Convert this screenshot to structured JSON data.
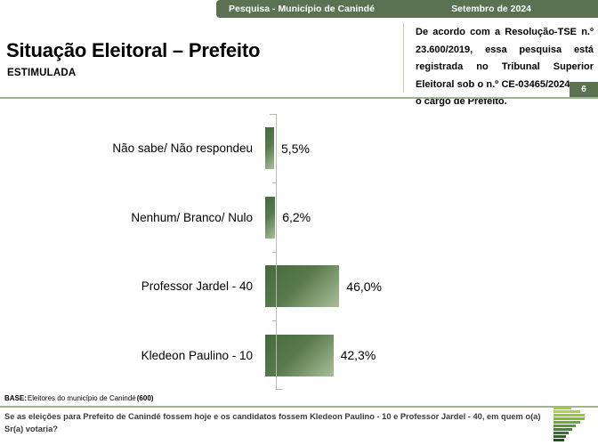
{
  "header": {
    "left": "Pesquisa - Município de Canindé",
    "right": "Setembro de 2024"
  },
  "title": "Situação Eleitoral – Prefeito",
  "subtitle": "ESTIMULADA",
  "registration_note": "De acordo com a Resolução-TSE n.º 23.600/2019, essa pesquisa está registrada no Tribunal Superior Eleitoral sob o n.º CE-03465/2024 para o cargo de Prefeito.",
  "page_number": "6",
  "chart_data": {
    "type": "bar",
    "orientation": "horizontal",
    "title": "Situação Eleitoral – Prefeito (Estimulada)",
    "categories": [
      "Não sabe/ Não respondeu",
      "Nenhum/ Branco/ Nulo",
      "Professor Jardel - 40",
      "Kledeon Paulino - 10"
    ],
    "values": [
      5.5,
      6.2,
      46.0,
      42.3
    ],
    "value_labels": [
      "5,5%",
      "6,2%",
      "46,0%",
      "42,3%"
    ],
    "xlabel": "",
    "ylabel": "",
    "xlim": [
      0,
      50
    ],
    "grid": false,
    "legend": false,
    "bar_color_dark": "#466a3d",
    "bar_color_light": "#a9bf9b"
  },
  "base": {
    "label": "BASE:",
    "text": "Eleitores do município de Canindé",
    "count": "(600)"
  },
  "question": "Se as eleições para Prefeito de Canindé fossem hoje e os candidatos fossem Kledeon Paulino - 10 e Professor Jardel - 40, em quem o(a) Sr(a) votaria?",
  "colors": {
    "header_green": "#5a7152",
    "rule_green": "#9fb492",
    "axis_gray": "#b3bbae",
    "question_text": "#3a3a3a"
  },
  "logo": {
    "name": "pesquisa-logo",
    "stripes": [
      {
        "w": 20,
        "c": "#a2c940"
      },
      {
        "w": 30,
        "c": "#abd04a"
      },
      {
        "w": 35,
        "c": "#9ac43c"
      },
      {
        "w": 35,
        "c": "#86b737"
      },
      {
        "w": 30,
        "c": "#71a836"
      },
      {
        "w": 25,
        "c": "#5b9733"
      },
      {
        "w": 21,
        "c": "#458630"
      },
      {
        "w": 17,
        "c": "#32742d"
      },
      {
        "w": 14,
        "c": "#27632b"
      },
      {
        "w": 12,
        "c": "#1b5126"
      }
    ]
  }
}
